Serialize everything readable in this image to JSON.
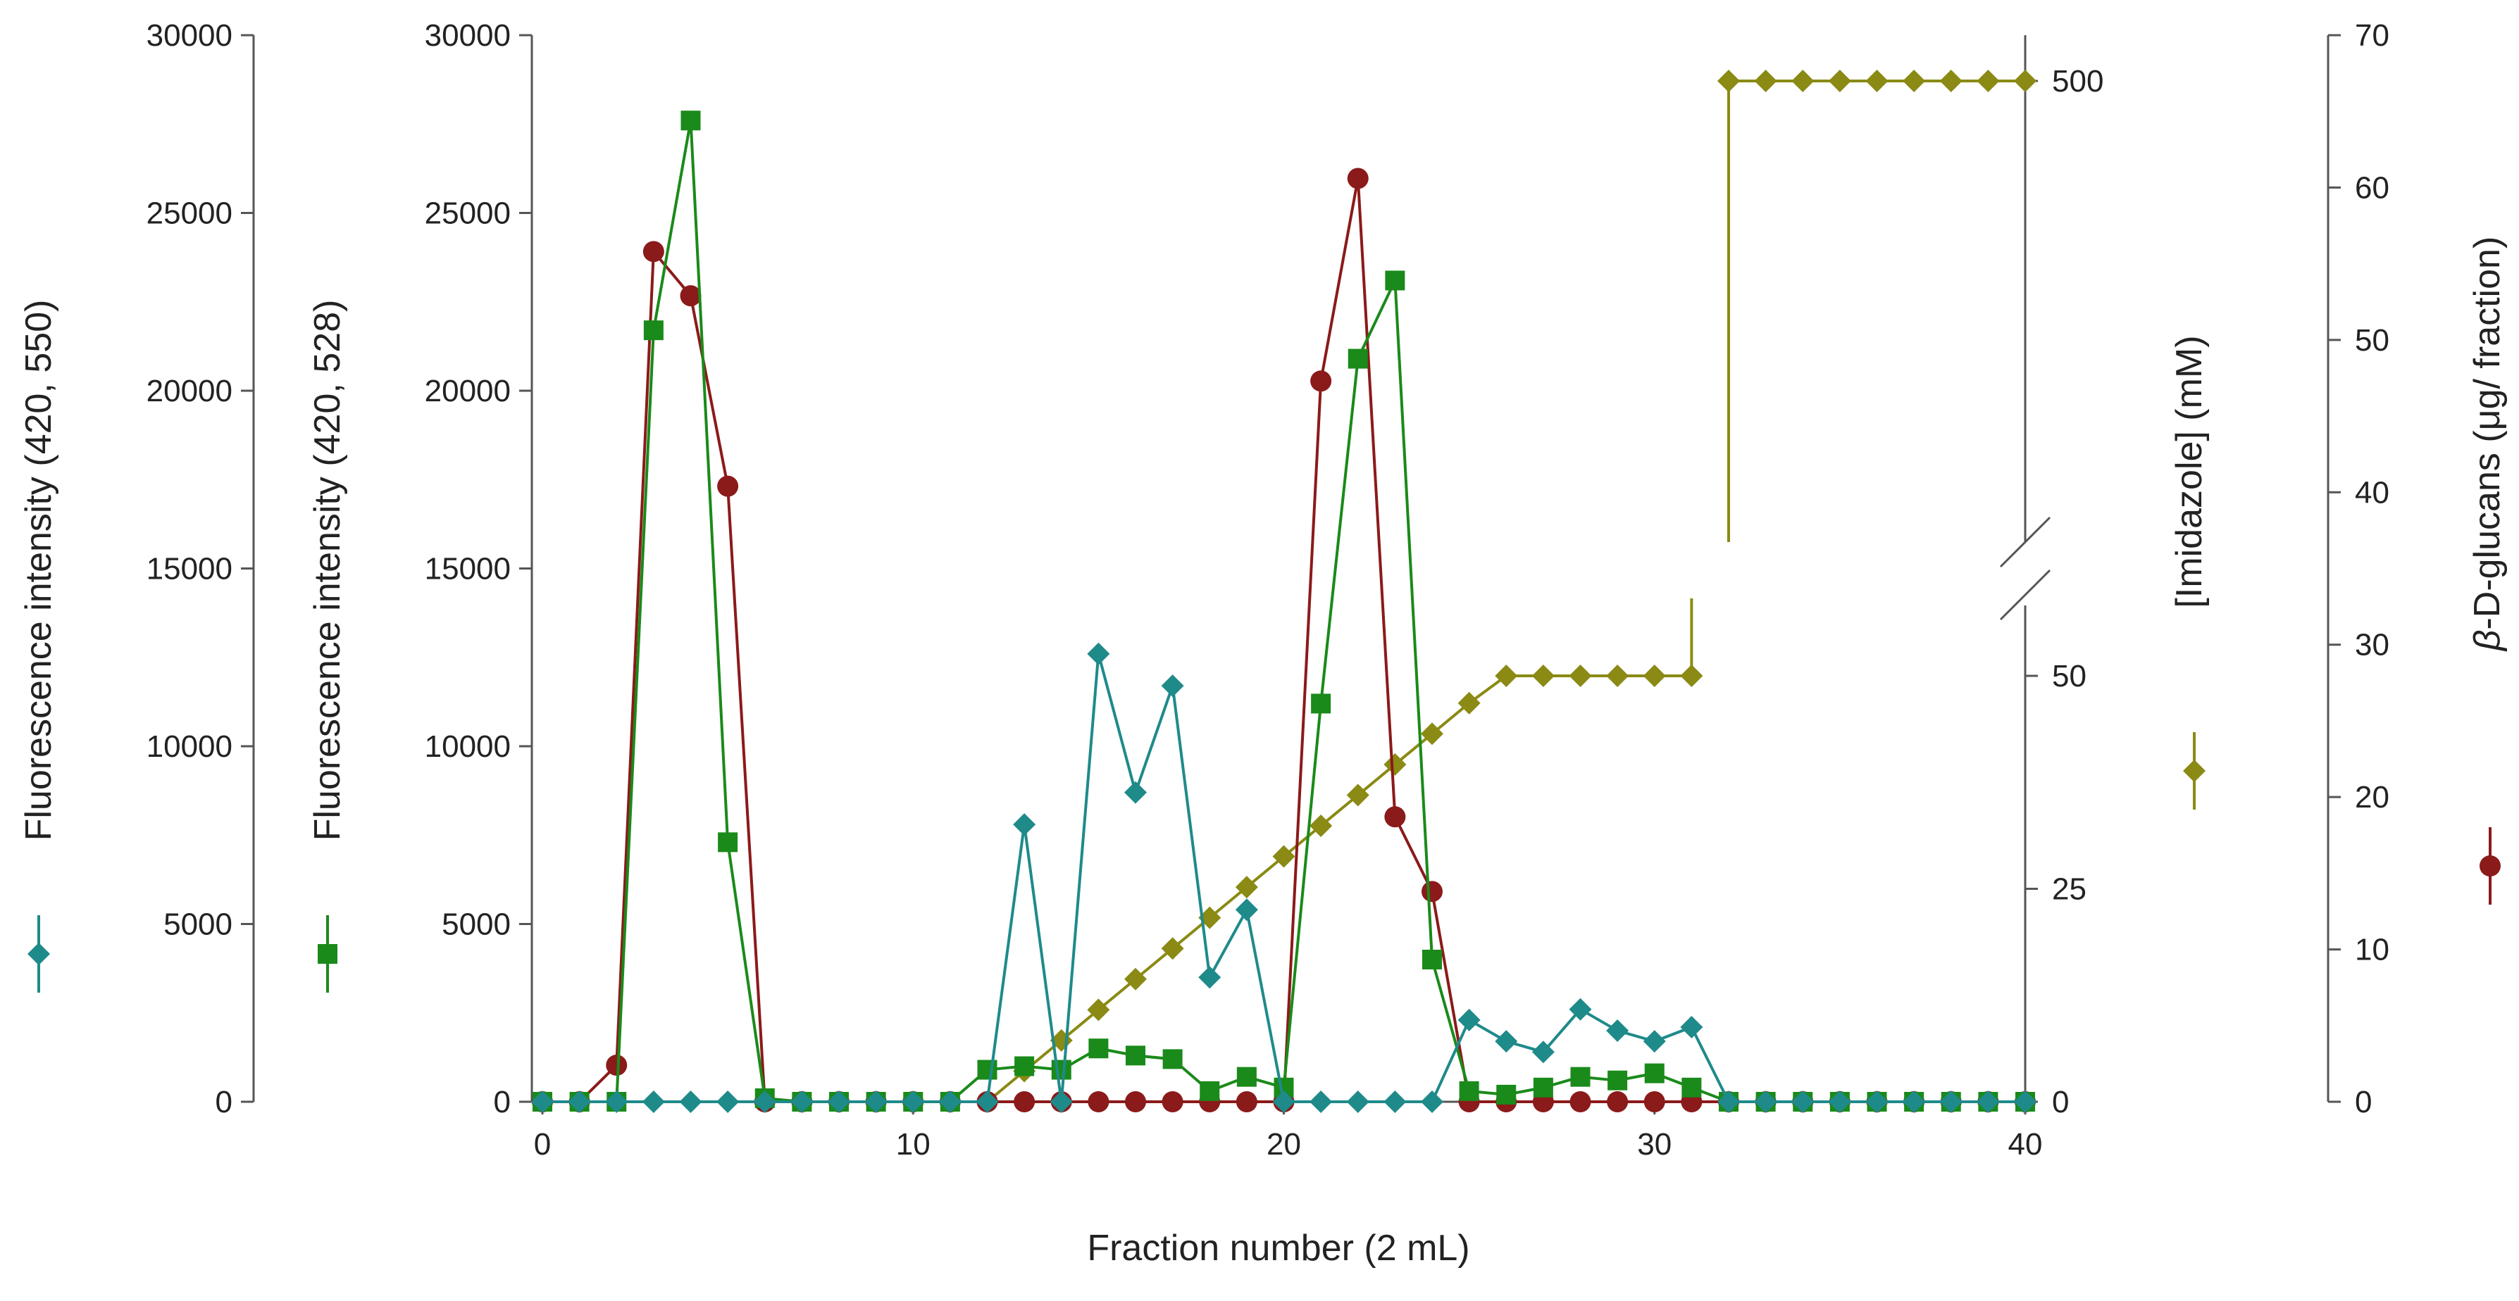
{
  "chart_data": {
    "type": "line",
    "x_axis": {
      "label": "Fraction number (2 mL)",
      "range": [
        0,
        40
      ],
      "ticks": [
        "0",
        "10",
        "20",
        "30",
        "40"
      ]
    },
    "left_axis_1": {
      "label": "Fluorescence intensity (420, 550)",
      "range": [
        0,
        30000
      ],
      "ticks": [
        "0",
        "5000",
        "10000",
        "15000",
        "20000",
        "25000",
        "30000"
      ]
    },
    "left_axis_2": {
      "label": "Fluorescence intensity (420, 528)",
      "range": [
        0,
        30000
      ],
      "ticks": [
        "0",
        "5000",
        "10000",
        "15000",
        "20000",
        "25000",
        "30000"
      ]
    },
    "imidazole_axis": {
      "label": "[Imidazole] (mM)",
      "ticks": [
        "0",
        "25",
        "50",
        "500"
      ],
      "broken": true
    },
    "glucan_axis": {
      "label_italic": "β",
      "label_rest": "-D-glucans (μg/ fraction)",
      "range": [
        0,
        70
      ],
      "ticks": [
        "0",
        "10",
        "20",
        "30",
        "40",
        "50",
        "60",
        "70"
      ]
    },
    "series": [
      {
        "id": "fluor550",
        "axis": "left_axis_1",
        "marker": "diamond",
        "color": "#1f8a8a",
        "x": [
          0,
          1,
          2,
          3,
          4,
          5,
          6,
          7,
          8,
          9,
          10,
          11,
          12,
          13,
          14,
          15,
          16,
          17,
          18,
          19,
          20,
          21,
          22,
          23,
          24,
          25,
          26,
          27,
          28,
          29,
          30,
          31,
          32,
          33,
          34,
          35,
          36,
          37,
          38,
          39,
          40
        ],
        "y": [
          0,
          0,
          0,
          0,
          0,
          0,
          0,
          0,
          0,
          0,
          0,
          0,
          0,
          7800,
          0,
          12600,
          8700,
          11700,
          3500,
          5400,
          0,
          0,
          0,
          0,
          0,
          2300,
          1700,
          1400,
          2600,
          2000,
          1700,
          2100,
          0,
          0,
          0,
          0,
          0,
          0,
          0,
          0,
          0
        ]
      },
      {
        "id": "fluor528",
        "axis": "left_axis_2",
        "marker": "square",
        "color": "#1a8a1a",
        "x": [
          0,
          1,
          2,
          3,
          4,
          5,
          6,
          7,
          8,
          9,
          10,
          11,
          12,
          13,
          14,
          15,
          16,
          17,
          18,
          19,
          20,
          21,
          22,
          23,
          24,
          25,
          26,
          27,
          28,
          29,
          30,
          31,
          32,
          33,
          34,
          35,
          36,
          37,
          38,
          39,
          40
        ],
        "y": [
          0,
          0,
          0,
          21700,
          27600,
          7300,
          100,
          0,
          0,
          0,
          0,
          0,
          900,
          1000,
          900,
          1500,
          1300,
          1200,
          300,
          700,
          400,
          11200,
          20900,
          23100,
          4000,
          300,
          200,
          400,
          700,
          600,
          800,
          400,
          0,
          0,
          0,
          0,
          0,
          0,
          0,
          0,
          0
        ]
      },
      {
        "id": "glucans",
        "axis": "glucan_axis",
        "marker": "circle",
        "color": "#8b1a1a",
        "x": [
          0,
          1,
          2,
          3,
          4,
          5,
          6,
          7,
          8,
          9,
          10,
          11,
          12,
          13,
          14,
          15,
          16,
          17,
          18,
          19,
          20,
          21,
          22,
          23,
          24,
          25,
          26,
          27,
          28,
          29,
          30,
          31,
          32,
          33,
          34,
          35,
          36,
          37,
          38,
          39,
          40
        ],
        "y": [
          0,
          0,
          2.4,
          55.8,
          52.9,
          40.4,
          0,
          0,
          0,
          0,
          0,
          0,
          0,
          0,
          0,
          0,
          0,
          0,
          0,
          0,
          0,
          47.3,
          60.6,
          18.7,
          13.8,
          0,
          0,
          0,
          0,
          0,
          0,
          0,
          0,
          0,
          0,
          0,
          0,
          0,
          0,
          0,
          0
        ]
      },
      {
        "id": "imidazole",
        "axis": "imidazole_axis",
        "marker": "diamond",
        "color": "#8a8a14",
        "segments": [
          {
            "x": [
              12,
              13,
              14,
              15,
              16,
              17,
              18,
              19,
              20,
              21,
              22,
              23,
              24,
              25,
              26,
              27,
              28,
              29,
              30,
              31
            ],
            "y": [
              0,
              3.6,
              7.2,
              10.8,
              14.4,
              18,
              21.6,
              25.2,
              28.8,
              32.4,
              36,
              39.6,
              43.2,
              46.8,
              50,
              50,
              50,
              50,
              50,
              50
            ]
          },
          {
            "x": [
              32,
              33,
              34,
              35,
              36,
              37,
              38,
              39,
              40
            ],
            "y": [
              500,
              500,
              500,
              500,
              500,
              500,
              500,
              500,
              500
            ]
          }
        ]
      }
    ]
  }
}
